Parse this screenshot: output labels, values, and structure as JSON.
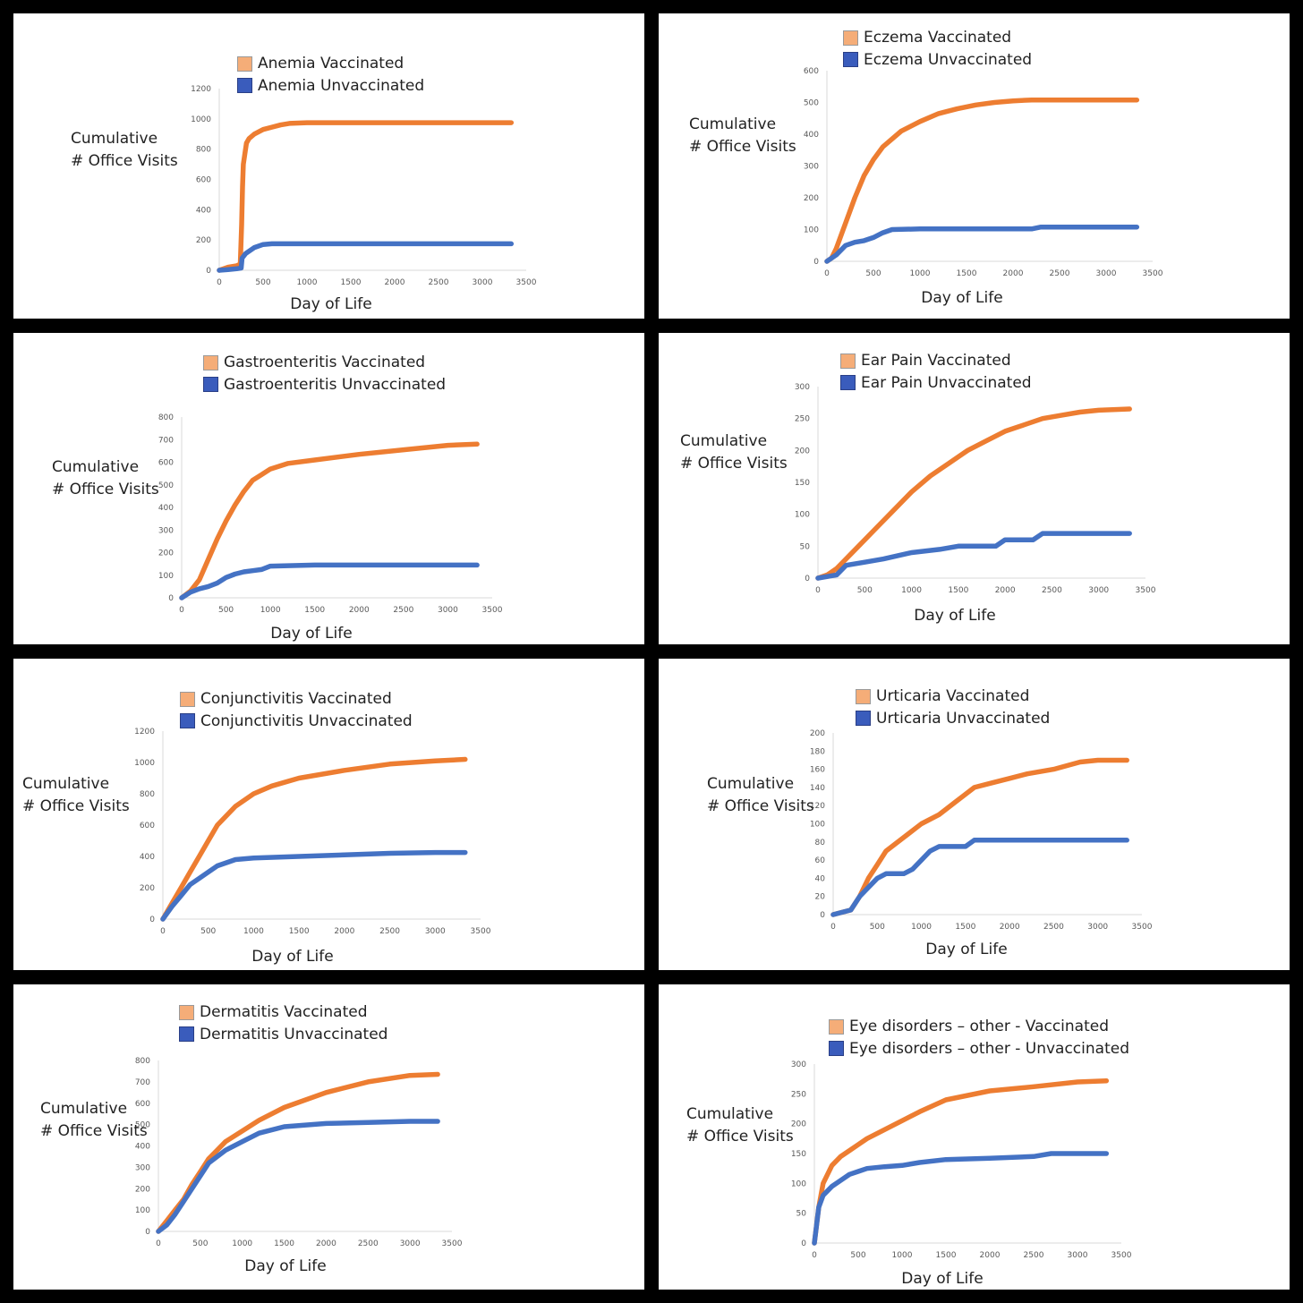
{
  "colors": {
    "background": "#000000",
    "panel": "#ffffff",
    "vaccinated": "#ed7d31",
    "unvaccinated": "#4472c4",
    "axis": "#d9d9d9",
    "tick_text": "#595959"
  },
  "chart_data": [
    {
      "type": "line",
      "title": "",
      "xlabel": "Day of Life",
      "ylabel": [
        "Cumulative",
        "# Office Visits"
      ],
      "grid": false,
      "legend": "top",
      "xlim": [
        0,
        3500
      ],
      "xticks": [
        "0",
        "500",
        "1000",
        "1500",
        "2000",
        "2500",
        "3000",
        "3500"
      ],
      "ylim": [
        0,
        1200
      ],
      "yticks": [
        "0",
        "200",
        "400",
        "600",
        "800",
        "1000",
        "1200"
      ],
      "series": [
        {
          "name": "Anemia Vaccinated",
          "x": [
            0,
            100,
            200,
            240,
            255,
            265,
            275,
            290,
            310,
            340,
            400,
            500,
            600,
            700,
            800,
            1000,
            1500,
            2000,
            2500,
            3000,
            3330
          ],
          "y": [
            0,
            20,
            30,
            40,
            300,
            550,
            700,
            760,
            840,
            870,
            900,
            930,
            945,
            960,
            970,
            975,
            975,
            975,
            975,
            975,
            975
          ]
        },
        {
          "name": "Anemia Unvaccinated",
          "x": [
            0,
            100,
            200,
            250,
            260,
            300,
            400,
            500,
            600,
            1000,
            2000,
            3000,
            3330
          ],
          "y": [
            0,
            5,
            10,
            15,
            80,
            110,
            150,
            170,
            175,
            175,
            175,
            175,
            175
          ]
        }
      ]
    },
    {
      "type": "line",
      "title": "",
      "xlabel": "Day of Life",
      "ylabel": [
        "Cumulative",
        "# Office Visits"
      ],
      "grid": false,
      "legend": "top",
      "xlim": [
        0,
        3500
      ],
      "xticks": [
        "0",
        "500",
        "1000",
        "1500",
        "2000",
        "2500",
        "3000",
        "3500"
      ],
      "ylim": [
        0,
        600
      ],
      "yticks": [
        "0",
        "100",
        "200",
        "300",
        "400",
        "500",
        "600"
      ],
      "series": [
        {
          "name": "Eczema Vaccinated",
          "x": [
            0,
            50,
            100,
            200,
            300,
            400,
            500,
            600,
            800,
            1000,
            1200,
            1400,
            1600,
            1800,
            2000,
            2200,
            2500,
            3000,
            3330
          ],
          "y": [
            0,
            10,
            40,
            120,
            200,
            270,
            320,
            360,
            410,
            440,
            465,
            480,
            492,
            500,
            505,
            508,
            508,
            508,
            508
          ]
        },
        {
          "name": "Eczema Unvaccinated",
          "x": [
            0,
            100,
            200,
            300,
            400,
            500,
            600,
            700,
            1000,
            1500,
            2000,
            2200,
            2300,
            3000,
            3330
          ],
          "y": [
            0,
            20,
            50,
            60,
            65,
            75,
            90,
            100,
            102,
            102,
            102,
            102,
            108,
            108,
            108
          ]
        }
      ]
    },
    {
      "type": "line",
      "title": "",
      "xlabel": "Day of Life",
      "ylabel": [
        "Cumulative",
        "# Office Visits"
      ],
      "grid": false,
      "legend": "top",
      "xlim": [
        0,
        3500
      ],
      "xticks": [
        "0",
        "500",
        "1000",
        "1500",
        "2000",
        "2500",
        "3000",
        "3500"
      ],
      "ylim": [
        0,
        800
      ],
      "yticks": [
        "0",
        "100",
        "200",
        "300",
        "400",
        "500",
        "600",
        "700",
        "800"
      ],
      "series": [
        {
          "name": "Gastroenteritis Vaccinated",
          "x": [
            0,
            100,
            200,
            300,
            400,
            500,
            600,
            700,
            800,
            900,
            1000,
            1200,
            1500,
            2000,
            2500,
            3000,
            3330
          ],
          "y": [
            0,
            30,
            80,
            170,
            260,
            340,
            410,
            470,
            520,
            545,
            570,
            595,
            610,
            635,
            655,
            675,
            680
          ]
        },
        {
          "name": "Gastroenteritis Unvaccinated",
          "x": [
            0,
            100,
            200,
            300,
            400,
            500,
            600,
            700,
            800,
            900,
            1000,
            1500,
            2000,
            3000,
            3330
          ],
          "y": [
            0,
            25,
            40,
            50,
            65,
            90,
            105,
            115,
            120,
            125,
            140,
            145,
            145,
            145,
            145
          ]
        }
      ]
    },
    {
      "type": "line",
      "title": "",
      "xlabel": "Day of Life",
      "ylabel": [
        "Cumulative",
        "# Office Visits"
      ],
      "grid": false,
      "legend": "top",
      "xlim": [
        0,
        3500
      ],
      "xticks": [
        "0",
        "500",
        "1000",
        "1500",
        "2000",
        "2500",
        "3000",
        "3500"
      ],
      "ylim": [
        0,
        300
      ],
      "yticks": [
        "0",
        "50",
        "100",
        "150",
        "200",
        "250",
        "300"
      ],
      "series": [
        {
          "name": "Ear Pain Vaccinated",
          "x": [
            0,
            100,
            200,
            300,
            400,
            500,
            600,
            800,
            1000,
            1200,
            1400,
            1600,
            1800,
            2000,
            2200,
            2400,
            2600,
            2800,
            3000,
            3330
          ],
          "y": [
            0,
            5,
            15,
            30,
            45,
            60,
            75,
            105,
            135,
            160,
            180,
            200,
            215,
            230,
            240,
            250,
            255,
            260,
            263,
            265
          ]
        },
        {
          "name": "Ear Pain Unvaccinated",
          "x": [
            0,
            200,
            300,
            500,
            700,
            1000,
            1300,
            1500,
            1900,
            2000,
            2300,
            2400,
            3000,
            3330
          ],
          "y": [
            0,
            5,
            20,
            25,
            30,
            40,
            45,
            50,
            50,
            60,
            60,
            70,
            70,
            70
          ]
        }
      ]
    },
    {
      "type": "line",
      "title": "",
      "xlabel": "Day of Life",
      "ylabel": [
        "Cumulative",
        "# Office Visits"
      ],
      "grid": false,
      "legend": "top",
      "xlim": [
        0,
        3500
      ],
      "xticks": [
        "0",
        "500",
        "1000",
        "1500",
        "2000",
        "2500",
        "3000",
        "3500"
      ],
      "ylim": [
        0,
        1200
      ],
      "yticks": [
        "0",
        "200",
        "400",
        "600",
        "800",
        "1000",
        "1200"
      ],
      "series": [
        {
          "name": "Conjunctivitis Vaccinated",
          "x": [
            0,
            100,
            200,
            300,
            400,
            500,
            600,
            700,
            800,
            1000,
            1200,
            1500,
            2000,
            2500,
            3000,
            3330
          ],
          "y": [
            0,
            100,
            200,
            300,
            400,
            500,
            600,
            660,
            720,
            800,
            850,
            900,
            950,
            990,
            1010,
            1020
          ]
        },
        {
          "name": "Conjunctivitis Unvaccinated",
          "x": [
            0,
            100,
            200,
            300,
            400,
            500,
            600,
            700,
            800,
            1000,
            1500,
            2000,
            2500,
            3000,
            3330
          ],
          "y": [
            0,
            80,
            150,
            220,
            260,
            300,
            340,
            360,
            380,
            390,
            400,
            410,
            420,
            425,
            425
          ]
        }
      ]
    },
    {
      "type": "line",
      "title": "",
      "xlabel": "Day of Life",
      "ylabel": [
        "Cumulative",
        "# Office Visits"
      ],
      "grid": false,
      "legend": "top",
      "xlim": [
        0,
        3500
      ],
      "xticks": [
        "0",
        "500",
        "1000",
        "1500",
        "2000",
        "2500",
        "3000",
        "3500"
      ],
      "ylim": [
        0,
        200
      ],
      "yticks": [
        "0",
        "20",
        "40",
        "60",
        "80",
        "100",
        "120",
        "140",
        "160",
        "180",
        "200"
      ],
      "series": [
        {
          "name": "Urticaria Vaccinated",
          "x": [
            0,
            200,
            300,
            400,
            500,
            600,
            800,
            1000,
            1200,
            1400,
            1600,
            1800,
            2000,
            2200,
            2500,
            2800,
            3000,
            3330
          ],
          "y": [
            0,
            5,
            20,
            40,
            55,
            70,
            85,
            100,
            110,
            125,
            140,
            145,
            150,
            155,
            160,
            168,
            170,
            170
          ]
        },
        {
          "name": "Urticaria Unvaccinated",
          "x": [
            0,
            200,
            300,
            400,
            500,
            600,
            800,
            900,
            1000,
            1100,
            1200,
            1500,
            1600,
            3000,
            3330
          ],
          "y": [
            0,
            5,
            20,
            30,
            40,
            45,
            45,
            50,
            60,
            70,
            75,
            75,
            82,
            82,
            82
          ]
        }
      ]
    },
    {
      "type": "line",
      "title": "",
      "xlabel": "Day of Life",
      "ylabel": [
        "Cumulative",
        "# Office Visits"
      ],
      "grid": false,
      "legend": "top",
      "xlim": [
        0,
        3500
      ],
      "xticks": [
        "0",
        "500",
        "1000",
        "1500",
        "2000",
        "2500",
        "3000",
        "3500"
      ],
      "ylim": [
        0,
        800
      ],
      "yticks": [
        "0",
        "100",
        "200",
        "300",
        "400",
        "500",
        "600",
        "700",
        "800"
      ],
      "series": [
        {
          "name": "Dermatitis Vaccinated",
          "x": [
            0,
            100,
            200,
            300,
            400,
            500,
            600,
            700,
            800,
            1000,
            1200,
            1500,
            2000,
            2500,
            3000,
            3330
          ],
          "y": [
            0,
            50,
            100,
            150,
            220,
            280,
            340,
            380,
            420,
            470,
            520,
            580,
            650,
            700,
            730,
            735
          ]
        },
        {
          "name": "Dermatitis Unvaccinated",
          "x": [
            0,
            100,
            200,
            300,
            400,
            500,
            600,
            700,
            800,
            1000,
            1200,
            1500,
            2000,
            2500,
            3000,
            3330
          ],
          "y": [
            0,
            30,
            80,
            140,
            200,
            260,
            320,
            350,
            380,
            420,
            460,
            490,
            505,
            510,
            515,
            515
          ]
        }
      ]
    },
    {
      "type": "line",
      "title": "",
      "xlabel": "Day of Life",
      "ylabel": [
        "Cumulative",
        "# Office Visits"
      ],
      "grid": false,
      "legend": "top",
      "xlim": [
        0,
        3500
      ],
      "xticks": [
        "0",
        "500",
        "1000",
        "1500",
        "2000",
        "2500",
        "3000",
        "3500"
      ],
      "ylim": [
        0,
        300
      ],
      "yticks": [
        "0",
        "50",
        "100",
        "150",
        "200",
        "250",
        "300"
      ],
      "series": [
        {
          "name": "Eye disorders – other - Vaccinated",
          "x": [
            0,
            50,
            100,
            200,
            300,
            400,
            500,
            600,
            800,
            1000,
            1200,
            1500,
            2000,
            2500,
            3000,
            3330
          ],
          "y": [
            0,
            60,
            100,
            130,
            145,
            155,
            165,
            175,
            190,
            205,
            220,
            240,
            255,
            262,
            270,
            272
          ]
        },
        {
          "name": "Eye disorders – other - Unvaccinated",
          "x": [
            0,
            50,
            100,
            200,
            300,
            400,
            500,
            600,
            800,
            1000,
            1200,
            1500,
            2000,
            2500,
            2700,
            3000,
            3330
          ],
          "y": [
            0,
            60,
            80,
            95,
            105,
            115,
            120,
            125,
            128,
            130,
            135,
            140,
            142,
            145,
            150,
            150,
            150
          ]
        }
      ]
    }
  ]
}
